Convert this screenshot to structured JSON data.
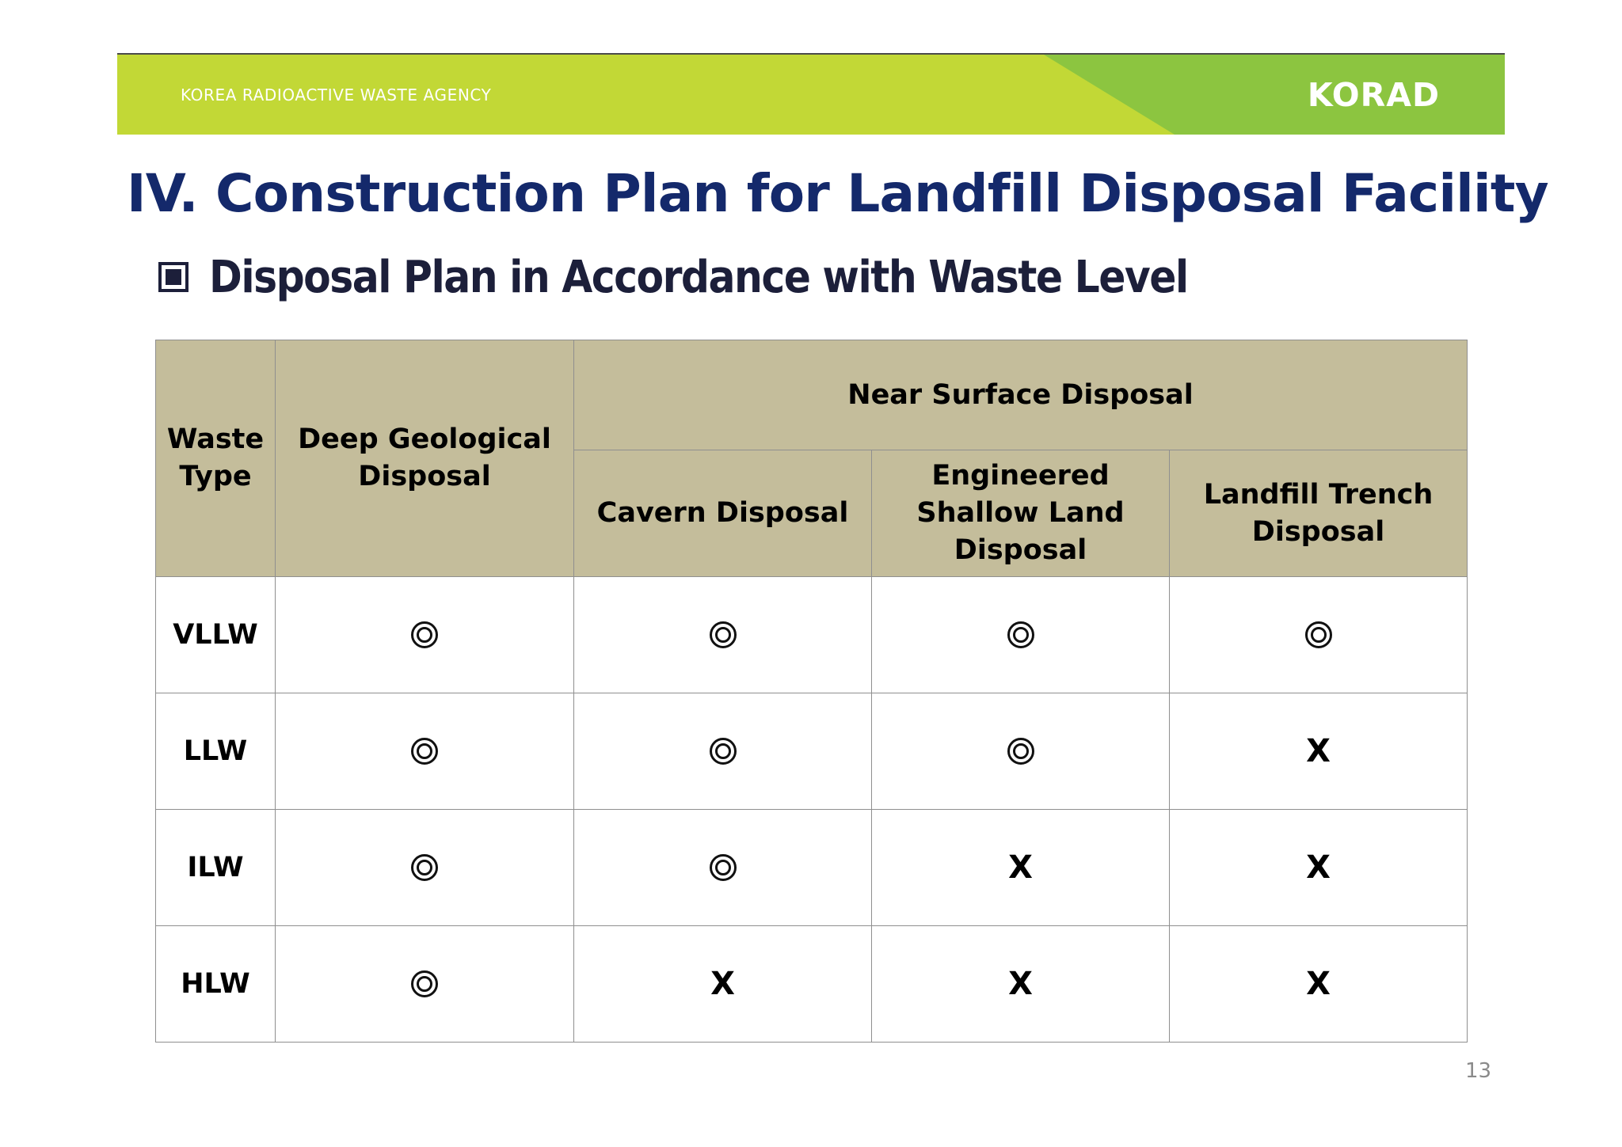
{
  "header": {
    "agency": "KOREA RADIOACTIVE WASTE AGENCY",
    "logo": "KORAD",
    "colors": {
      "banner_lime": "#c2d836",
      "banner_green": "#8cc540"
    }
  },
  "title": "IV. Construction Plan for Landfill Disposal Facility",
  "subtitle": "Disposal Plan in Accordance with Waste Level",
  "table": {
    "headers": {
      "waste_type": "Waste Type",
      "deep_geological": "Deep Geological Disposal",
      "near_surface": "Near Surface Disposal",
      "cavern": "Cavern Disposal",
      "engineered": "Engineered Shallow Land Disposal",
      "landfill": "Landfill Trench Disposal"
    },
    "rows": [
      {
        "waste_type": "VLLW",
        "cells": [
          "◎",
          "◎",
          "◎",
          "◎"
        ]
      },
      {
        "waste_type": "LLW",
        "cells": [
          "◎",
          "◎",
          "◎",
          "X"
        ]
      },
      {
        "waste_type": "ILW",
        "cells": [
          "◎",
          "◎",
          "X",
          "X"
        ]
      },
      {
        "waste_type": "HLW",
        "cells": [
          "◎",
          "X",
          "X",
          "X"
        ]
      }
    ],
    "header_color": "#c4bd9b"
  },
  "page_number": "13"
}
